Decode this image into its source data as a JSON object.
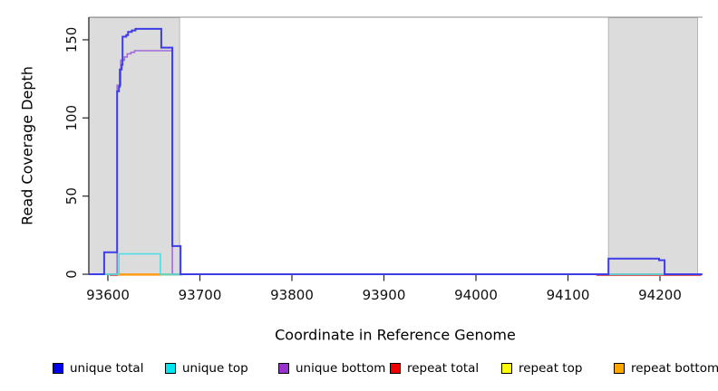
{
  "chart_data": {
    "type": "line",
    "subtype": "step-coverage",
    "title": "",
    "xlabel": "Coordinate in Reference Genome",
    "ylabel": "Read Coverage Depth",
    "xlim": [
      93579,
      94246
    ],
    "ylim": [
      0,
      165
    ],
    "x_ticks": [
      93600,
      93700,
      93800,
      93900,
      94000,
      94100,
      94200
    ],
    "y_ticks": [
      0,
      50,
      100,
      150
    ],
    "grid": false,
    "legend_position": "bottom",
    "shaded_regions": [
      {
        "name": "repeat-region-left",
        "start": 93579,
        "end": 93678,
        "fill": "#dcdcdc",
        "border": "#ababab"
      },
      {
        "name": "repeat-region-right",
        "start": 94144,
        "end": 94241,
        "fill": "#dcdcdc",
        "border": "#ababab"
      }
    ],
    "series": [
      {
        "name": "repeat total",
        "color": "#E35A5A",
        "width": 1.5,
        "points": [
          [
            93579,
            0
          ],
          [
            94246,
            0
          ]
        ]
      },
      {
        "name": "repeat top",
        "color": "#FFFF00",
        "width": 1.5,
        "points": [
          [
            93579,
            0
          ],
          [
            94246,
            0
          ]
        ]
      },
      {
        "name": "repeat bottom",
        "color": "#FF9A1A",
        "width": 1.7,
        "points": [
          [
            93579,
            0
          ],
          [
            94246,
            0
          ]
        ]
      },
      {
        "name": "unique bottom",
        "color": "#A06CD8",
        "width": 1.6,
        "points": [
          [
            93579,
            0
          ],
          [
            93610,
            0
          ],
          [
            93610,
            121
          ],
          [
            93614,
            121
          ],
          [
            93614,
            137
          ],
          [
            93618,
            137
          ],
          [
            93618,
            139
          ],
          [
            93621,
            139
          ],
          [
            93621,
            141
          ],
          [
            93625,
            141
          ],
          [
            93625,
            142
          ],
          [
            93629,
            142
          ],
          [
            93629,
            143
          ],
          [
            93670,
            143
          ],
          [
            93670,
            0
          ],
          [
            94246,
            0
          ]
        ]
      },
      {
        "name": "unique top",
        "color": "#45E0E6",
        "width": 1.6,
        "points": [
          [
            93579,
            0
          ],
          [
            93612,
            0
          ],
          [
            93612,
            13
          ],
          [
            93657,
            13
          ],
          [
            93657,
            0
          ],
          [
            94246,
            0
          ]
        ]
      },
      {
        "name": "unique total",
        "color": "#3D3DE8",
        "width": 2,
        "points": [
          [
            93579,
            0
          ],
          [
            93596,
            0
          ],
          [
            93596,
            14
          ],
          [
            93610,
            14
          ],
          [
            93610,
            117
          ],
          [
            93612,
            117
          ],
          [
            93612,
            120
          ],
          [
            93613,
            120
          ],
          [
            93613,
            131
          ],
          [
            93615,
            131
          ],
          [
            93615,
            134
          ],
          [
            93616,
            134
          ],
          [
            93616,
            152
          ],
          [
            93620,
            152
          ],
          [
            93620,
            153
          ],
          [
            93622,
            153
          ],
          [
            93622,
            155
          ],
          [
            93626,
            155
          ],
          [
            93626,
            156
          ],
          [
            93630,
            156
          ],
          [
            93630,
            157
          ],
          [
            93658,
            157
          ],
          [
            93658,
            145
          ],
          [
            93670,
            145
          ],
          [
            93670,
            18
          ],
          [
            93679,
            18
          ],
          [
            93679,
            0
          ],
          [
            94144,
            0
          ],
          [
            94144,
            10
          ],
          [
            94199,
            10
          ],
          [
            94199,
            9
          ],
          [
            94205,
            9
          ],
          [
            94205,
            0
          ],
          [
            94246,
            0
          ]
        ]
      }
    ],
    "baseline_accents": [
      {
        "color": "#E35A5A",
        "from": 93602,
        "to": 93611,
        "dy": 1.2
      },
      {
        "color": "#E35A5A",
        "from": 94131,
        "to": 94245,
        "dy": 1.2
      },
      {
        "color": "#FF9A1A",
        "from": 93611,
        "to": 93658,
        "dy": 0.9
      },
      {
        "color": "#7CCF9E",
        "from": 93658,
        "to": 93681,
        "dy": 0.7
      }
    ],
    "legend": [
      {
        "label": "unique total",
        "color": "#0000EE"
      },
      {
        "label": "unique top",
        "color": "#00E5EE"
      },
      {
        "label": "unique bottom",
        "color": "#9932CC"
      },
      {
        "label": "repeat total",
        "color": "#EE0000"
      },
      {
        "label": "repeat top",
        "color": "#FFFF00"
      },
      {
        "label": "repeat bottom",
        "color": "#FFA500"
      }
    ]
  }
}
